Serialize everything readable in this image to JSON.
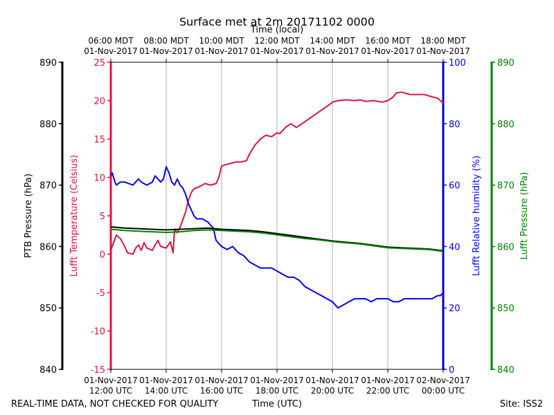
{
  "chart_data": {
    "type": "line",
    "title": "Surface met at 2m 20171102 0000",
    "top_axis_label": "Time (local)",
    "bottom_axis_label": "Time (UTC)",
    "footer_left": "REAL-TIME DATA, NOT CHECKED FOR QUALITY",
    "footer_right": "Site: ISS2",
    "x_range_hours": [
      12,
      24
    ],
    "bottom_ticks": [
      {
        "h": 12,
        "l1": "01-Nov-2017",
        "l2": "12:00 UTC"
      },
      {
        "h": 14,
        "l1": "01-Nov-2017",
        "l2": "14:00 UTC"
      },
      {
        "h": 16,
        "l1": "01-Nov-2017",
        "l2": "16:00 UTC"
      },
      {
        "h": 18,
        "l1": "01-Nov-2017",
        "l2": "18:00 UTC"
      },
      {
        "h": 20,
        "l1": "01-Nov-2017",
        "l2": "20:00 UTC"
      },
      {
        "h": 22,
        "l1": "01-Nov-2017",
        "l2": "22:00 UTC"
      },
      {
        "h": 24,
        "l1": "02-Nov-2017",
        "l2": "00:00 UTC"
      }
    ],
    "top_ticks": [
      {
        "h": 12,
        "l1": "06:00 MDT",
        "l2": "01-Nov-2017"
      },
      {
        "h": 14,
        "l1": "08:00 MDT",
        "l2": "01-Nov-2017"
      },
      {
        "h": 16,
        "l1": "10:00 MDT",
        "l2": "01-Nov-2017"
      },
      {
        "h": 18,
        "l1": "12:00 MDT",
        "l2": "01-Nov-2017"
      },
      {
        "h": 20,
        "l1": "14:00 MDT",
        "l2": "01-Nov-2017"
      },
      {
        "h": 22,
        "l1": "16:00 MDT",
        "l2": "01-Nov-2017"
      },
      {
        "h": 24,
        "l1": "18:00 MDT",
        "l2": "01-Nov-2017"
      }
    ],
    "axes": {
      "ptb": {
        "label": "PTB Pressure (hPa)",
        "color": "#000000",
        "ylim": [
          840,
          890
        ],
        "ticks": [
          840,
          850,
          860,
          870,
          880,
          890
        ]
      },
      "temp": {
        "label": "Lufft Temperature (Celsius)",
        "color": "#dc143c",
        "ylim": [
          -15,
          25
        ],
        "ticks": [
          -15,
          -10,
          -5,
          0,
          5,
          10,
          15,
          20,
          25
        ]
      },
      "rh": {
        "label": "Lufft Relative humidity (%)",
        "color": "#0000ff",
        "ylim": [
          0,
          100
        ],
        "ticks": [
          0,
          20,
          40,
          60,
          80,
          100
        ]
      },
      "lp": {
        "label": "Lufft Pressure (hPa)",
        "color": "#008000",
        "ylim": [
          840,
          890
        ],
        "ticks": [
          840,
          850,
          860,
          870,
          880,
          890
        ]
      }
    },
    "series": [
      {
        "name": "Lufft Temperature",
        "axis": "temp",
        "color": "#dc143c",
        "x": [
          12.0,
          12.1,
          12.2,
          12.35,
          12.5,
          12.6,
          12.8,
          12.9,
          13.0,
          13.1,
          13.2,
          13.3,
          13.5,
          13.6,
          13.7,
          13.8,
          14.0,
          14.15,
          14.25,
          14.3,
          14.4,
          14.5,
          14.6,
          14.7,
          14.8,
          14.9,
          15.0,
          15.2,
          15.4,
          15.6,
          15.8,
          15.9,
          16.0,
          16.1,
          16.3,
          16.5,
          16.7,
          16.9,
          17.0,
          17.2,
          17.4,
          17.6,
          17.8,
          18.0,
          18.1,
          18.3,
          18.5,
          18.7,
          18.9,
          19.1,
          19.3,
          19.5,
          19.7,
          19.9,
          20.0,
          20.2,
          20.5,
          20.8,
          21.0,
          21.2,
          21.5,
          21.8,
          22.0,
          22.2,
          22.3,
          22.5,
          22.8,
          23.0,
          23.3,
          23.6,
          23.8,
          23.9,
          24.0
        ],
        "y": [
          0.5,
          1.5,
          2.5,
          2.0,
          1.0,
          0.2,
          0.0,
          0.8,
          1.2,
          0.5,
          1.5,
          0.8,
          0.5,
          1.2,
          1.8,
          1.0,
          0.8,
          1.6,
          0.2,
          3.3,
          2.8,
          3.5,
          4.5,
          5.5,
          7.0,
          8.0,
          8.5,
          8.8,
          9.2,
          9.0,
          9.2,
          10.0,
          11.5,
          11.6,
          11.8,
          12.0,
          12.0,
          12.2,
          13.0,
          14.2,
          15.0,
          15.5,
          15.3,
          15.8,
          15.7,
          16.5,
          17.0,
          16.5,
          17.0,
          17.5,
          18.0,
          18.5,
          19.0,
          19.5,
          19.8,
          20.0,
          20.1,
          20.0,
          20.1,
          19.9,
          20.0,
          19.8,
          20.0,
          20.5,
          21.0,
          21.1,
          20.8,
          20.8,
          20.8,
          20.5,
          20.3,
          20.0,
          19.7
        ]
      },
      {
        "name": "Lufft Relative humidity",
        "axis": "rh",
        "color": "#0000ff",
        "x": [
          12.0,
          12.05,
          12.15,
          12.2,
          12.35,
          12.5,
          12.8,
          13.0,
          13.1,
          13.3,
          13.5,
          13.6,
          13.8,
          13.9,
          14.0,
          14.1,
          14.2,
          14.3,
          14.4,
          14.5,
          14.6,
          14.7,
          14.8,
          14.9,
          15.0,
          15.1,
          15.3,
          15.5,
          15.7,
          15.8,
          16.0,
          16.2,
          16.4,
          16.6,
          16.8,
          17.0,
          17.2,
          17.4,
          17.6,
          17.8,
          18.0,
          18.2,
          18.4,
          18.6,
          18.8,
          19.0,
          19.2,
          19.4,
          19.6,
          19.8,
          20.0,
          20.2,
          20.4,
          20.6,
          20.8,
          21.0,
          21.2,
          21.4,
          21.6,
          21.8,
          22.0,
          22.2,
          22.4,
          22.6,
          22.8,
          23.0,
          23.3,
          23.6,
          23.8,
          23.9,
          24.0
        ],
        "y": [
          63,
          64,
          61,
          60,
          61,
          61,
          60,
          62,
          61,
          60,
          61,
          63,
          61,
          62,
          66,
          64,
          61,
          60,
          62,
          60,
          59,
          57,
          54,
          52,
          50,
          49,
          49,
          48,
          46,
          42,
          40,
          39,
          40,
          38,
          37,
          35,
          34,
          33,
          33,
          33,
          32,
          31,
          30,
          30,
          29,
          27,
          26,
          25,
          24,
          23,
          22,
          20,
          21,
          22,
          23,
          23,
          23,
          22,
          23,
          23,
          23,
          22,
          22,
          23,
          23,
          23,
          23,
          23,
          24,
          24,
          25
        ]
      },
      {
        "name": "PTB Pressure",
        "axis": "ptb",
        "color": "#000000",
        "x": [
          12.0,
          12.5,
          13.0,
          13.5,
          14.0,
          14.5,
          15.0,
          15.5,
          16.0,
          16.5,
          17.0,
          17.5,
          18.0,
          18.5,
          19.0,
          19.5,
          20.0,
          20.5,
          21.0,
          21.5,
          22.0,
          22.5,
          23.0,
          23.5,
          24.0
        ],
        "y": [
          863.2,
          863.0,
          862.9,
          862.8,
          862.7,
          862.8,
          862.9,
          863.0,
          862.8,
          862.7,
          862.6,
          862.4,
          862.1,
          861.8,
          861.5,
          861.2,
          860.9,
          860.7,
          860.5,
          860.2,
          859.9,
          859.8,
          859.7,
          859.6,
          859.3
        ]
      },
      {
        "name": "Lufft Pressure",
        "axis": "lp",
        "color": "#008000",
        "x": [
          12.0,
          12.5,
          13.0,
          13.5,
          14.0,
          14.5,
          15.0,
          15.5,
          16.0,
          16.5,
          17.0,
          17.5,
          18.0,
          18.5,
          19.0,
          19.5,
          20.0,
          20.5,
          21.0,
          21.5,
          22.0,
          22.5,
          23.0,
          23.5,
          24.0
        ],
        "y": [
          862.8,
          862.6,
          862.5,
          862.4,
          862.3,
          862.4,
          862.6,
          862.7,
          862.6,
          862.5,
          862.4,
          862.2,
          861.9,
          861.6,
          861.3,
          861.1,
          860.8,
          860.6,
          860.4,
          860.1,
          859.8,
          859.7,
          859.6,
          859.5,
          859.2
        ]
      }
    ]
  }
}
